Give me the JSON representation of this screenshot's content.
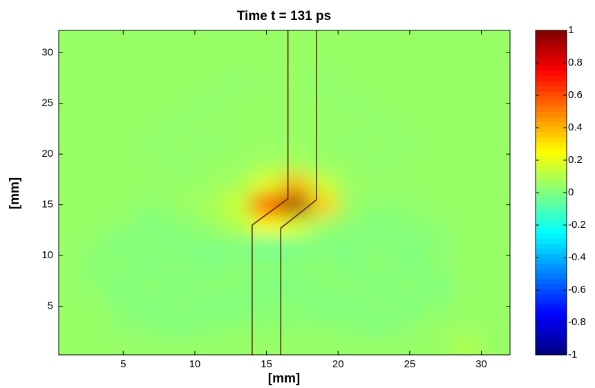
{
  "chart_data": {
    "type": "heatmap",
    "title": "Time t = 131 ps",
    "x_label": "[mm]",
    "y_label": "[mm]",
    "xlim": [
      0.5,
      32
    ],
    "ylim": [
      0.2,
      32.2
    ],
    "xticks": [
      5,
      10,
      15,
      20,
      25,
      30
    ],
    "yticks": [
      5,
      10,
      15,
      20,
      25,
      30
    ],
    "colormap": "jet",
    "clim": [
      -1,
      1
    ],
    "colorbar_ticks": [
      1,
      0.8,
      0.6,
      0.4,
      0.2,
      0,
      -0.2,
      -0.4,
      -0.6,
      -0.8,
      -1
    ],
    "z_x": [
      1,
      3,
      5,
      7,
      9,
      11,
      13,
      15,
      17,
      19,
      21,
      23,
      25,
      27,
      29,
      31
    ],
    "z_y": [
      1,
      3,
      5,
      7,
      9,
      11,
      13,
      15,
      17,
      19,
      21,
      23,
      25,
      27,
      29,
      31
    ],
    "z": [
      [
        0.05,
        0.05,
        0.05,
        0.05,
        0.05,
        0.05,
        0.05,
        0.05,
        0.05,
        0.05,
        0.05,
        0.05,
        0.05,
        0.05,
        0.1,
        0.05
      ],
      [
        0.05,
        0.05,
        0.03,
        0.02,
        0.0,
        0.02,
        0.03,
        0.03,
        0.03,
        0.03,
        0.02,
        0.0,
        0.03,
        0.05,
        0.05,
        0.05
      ],
      [
        0.05,
        0.05,
        0.02,
        0.0,
        0.03,
        0.0,
        0.0,
        0.02,
        0.02,
        0.0,
        0.0,
        0.03,
        0.0,
        0.03,
        0.05,
        0.05
      ],
      [
        0.05,
        0.03,
        0.0,
        0.03,
        0.0,
        0.03,
        0.02,
        0.0,
        0.0,
        0.02,
        0.03,
        0.0,
        0.03,
        0.0,
        0.05,
        0.05
      ],
      [
        0.05,
        0.02,
        0.03,
        0.0,
        0.03,
        0.0,
        0.02,
        0.03,
        0.02,
        0.03,
        0.0,
        0.03,
        0.0,
        0.03,
        0.05,
        0.05
      ],
      [
        0.05,
        0.03,
        0.0,
        0.02,
        0.0,
        0.0,
        0.0,
        -0.05,
        -0.02,
        0.0,
        0.0,
        0.02,
        0.0,
        0.02,
        0.05,
        0.05
      ],
      [
        0.05,
        0.05,
        0.03,
        0.0,
        0.02,
        0.05,
        0.1,
        0.25,
        0.2,
        0.05,
        0.02,
        0.0,
        0.02,
        0.03,
        0.05,
        0.05
      ],
      [
        0.05,
        0.05,
        0.05,
        0.03,
        0.05,
        0.08,
        0.15,
        0.75,
        0.95,
        0.35,
        0.05,
        0.03,
        0.03,
        0.05,
        0.05,
        0.05
      ],
      [
        0.05,
        0.05,
        0.05,
        0.05,
        0.05,
        0.05,
        0.08,
        0.2,
        0.4,
        0.15,
        0.05,
        0.05,
        0.05,
        0.05,
        0.05,
        0.05
      ],
      [
        0.05,
        0.05,
        0.05,
        0.05,
        0.03,
        0.05,
        0.05,
        0.07,
        0.08,
        0.05,
        0.05,
        0.03,
        0.05,
        0.05,
        0.05,
        0.05
      ],
      [
        0.05,
        0.05,
        0.05,
        0.03,
        0.05,
        0.03,
        0.05,
        0.05,
        0.05,
        0.05,
        0.03,
        0.05,
        0.03,
        0.05,
        0.05,
        0.05
      ],
      [
        0.05,
        0.05,
        0.05,
        0.05,
        0.03,
        0.05,
        0.05,
        0.05,
        0.05,
        0.05,
        0.05,
        0.03,
        0.05,
        0.05,
        0.05,
        0.05
      ],
      [
        0.05,
        0.05,
        0.05,
        0.05,
        0.05,
        0.03,
        0.05,
        0.05,
        0.05,
        0.05,
        0.03,
        0.05,
        0.05,
        0.05,
        0.05,
        0.05
      ],
      [
        0.05,
        0.05,
        0.05,
        0.05,
        0.05,
        0.05,
        0.03,
        0.05,
        0.05,
        0.03,
        0.05,
        0.05,
        0.05,
        0.05,
        0.05,
        0.05
      ],
      [
        0.05,
        0.05,
        0.05,
        0.05,
        0.05,
        0.05,
        0.05,
        0.05,
        0.05,
        0.05,
        0.05,
        0.05,
        0.05,
        0.05,
        0.05,
        0.05
      ],
      [
        0.05,
        0.05,
        0.05,
        0.05,
        0.05,
        0.05,
        0.05,
        0.05,
        0.05,
        0.05,
        0.05,
        0.05,
        0.05,
        0.05,
        0.05,
        0.05
      ]
    ],
    "outline": [
      {
        "x": [
          16.5,
          16.5,
          14,
          14
        ],
        "y": [
          32.2,
          15.6,
          13,
          0.2
        ]
      },
      {
        "x": [
          18.5,
          18.5,
          16,
          16
        ],
        "y": [
          32.2,
          15.5,
          12.7,
          0.2
        ]
      }
    ]
  }
}
